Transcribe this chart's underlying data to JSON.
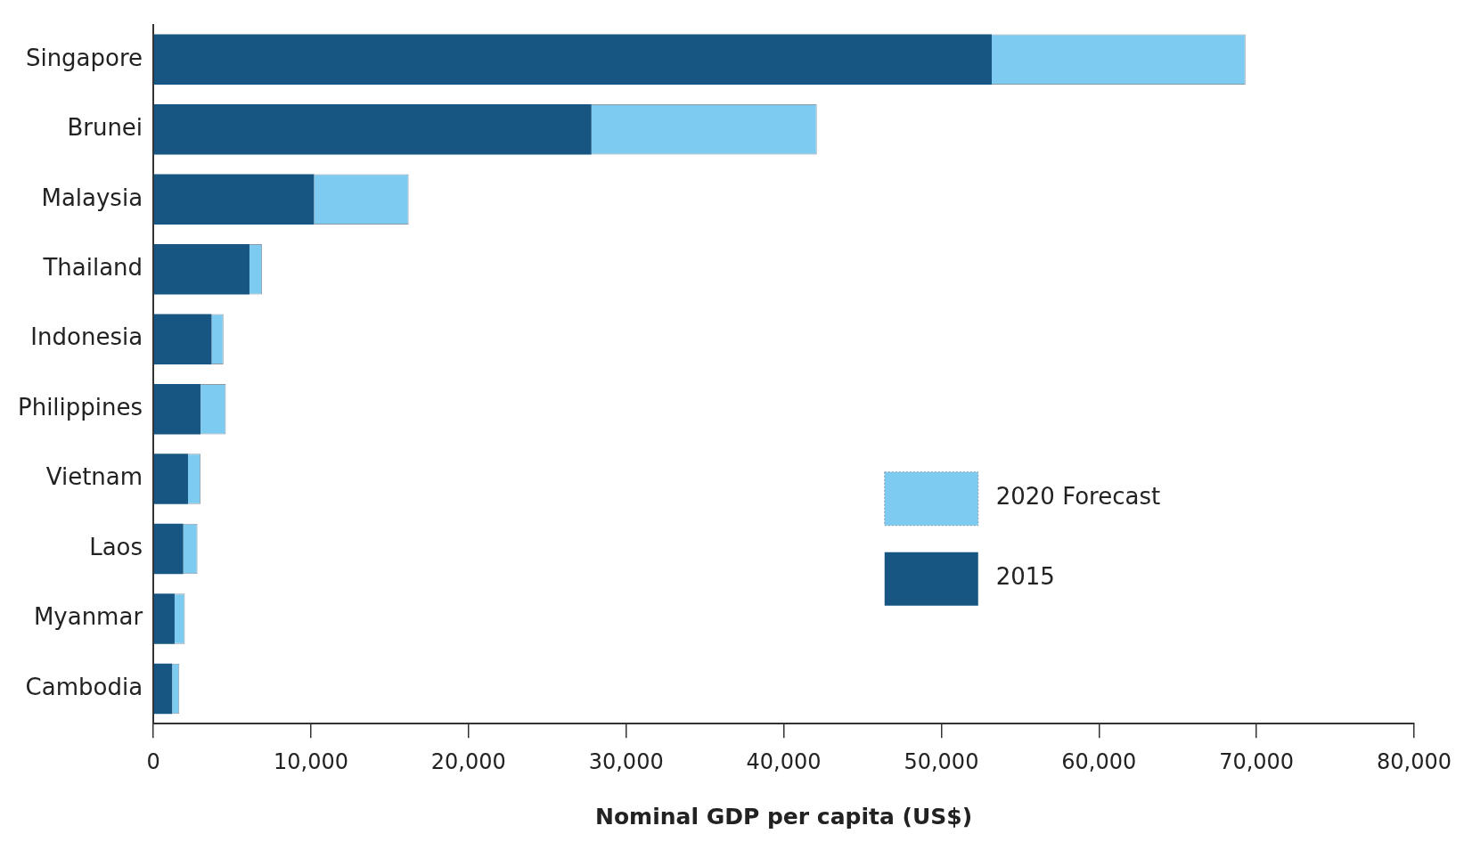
{
  "chart_data": {
    "type": "bar",
    "orientation": "horizontal",
    "stacked": true,
    "xlabel": "Nominal GDP per capita (US$)",
    "categories": [
      "Singapore",
      "Brunei",
      "Malaysia",
      "Thailand",
      "Indonesia",
      "Philippines",
      "Vietnam",
      "Laos",
      "Myanmar",
      "Cambodia"
    ],
    "series": [
      {
        "name": "2015",
        "color": "#175682",
        "values": [
          53200,
          27800,
          10200,
          6100,
          3700,
          3000,
          2200,
          1900,
          1350,
          1200
        ]
      },
      {
        "name": "2020 Forecast",
        "color": "#7ecbf1",
        "values": [
          16100,
          14300,
          6000,
          800,
          750,
          1600,
          800,
          900,
          650,
          450
        ]
      }
    ],
    "xlim": [
      0,
      80000
    ],
    "xticks": [
      0,
      {
        "value": 10000,
        "label": "10,000"
      },
      {
        "value": 20000,
        "label": "20,000"
      },
      {
        "value": 30000,
        "label": "30,000"
      },
      {
        "value": 40000,
        "label": "40,000"
      },
      {
        "value": 50000,
        "label": "50,000"
      },
      {
        "value": 60000,
        "label": "60,000"
      },
      {
        "value": 70000,
        "label": "70,000"
      },
      {
        "value": 80000,
        "label": "80,000"
      }
    ],
    "grid": false,
    "legend": "right"
  }
}
